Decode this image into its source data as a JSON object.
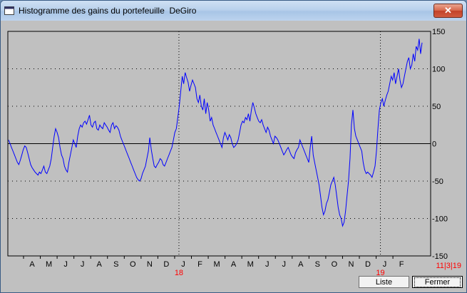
{
  "window": {
    "title": "Histogramme des gains du portefeuille  DeGiro",
    "close_icon": "close-icon"
  },
  "buttons": {
    "liste": "Liste",
    "fermer": "Fermer"
  },
  "colors": {
    "line": "#0000ff",
    "year_label": "#ff0000",
    "plot_bg": "#c0c0c0",
    "zero_line": "#000000"
  },
  "chart_data": {
    "type": "line",
    "ylim": [
      -150,
      150
    ],
    "yticks": [
      "150",
      "100",
      "50",
      "0",
      "-50",
      "-100",
      "-150"
    ],
    "grid": "dotted",
    "x_labels": [
      "A",
      "M",
      "J",
      "J",
      "A",
      "S",
      "O",
      "N",
      "D",
      "J",
      "F",
      "M",
      "A",
      "M",
      "J",
      "J",
      "A",
      "S",
      "O",
      "N",
      "D",
      "J",
      "F"
    ],
    "year_labels": [
      "18",
      "19"
    ],
    "date_label": "11|3|19",
    "series": [
      {
        "values": [
          5,
          0,
          -5,
          -10,
          -15,
          -20,
          -25,
          -28,
          -22,
          -15,
          -8,
          -3,
          -5,
          -12,
          -20,
          -28,
          -32,
          -35,
          -38,
          -40,
          -42,
          -38,
          -40,
          -35,
          -30,
          -38,
          -40,
          -35,
          -30,
          -20,
          -5,
          10,
          20,
          15,
          8,
          -5,
          -15,
          -20,
          -30,
          -35,
          -38,
          -25,
          -15,
          -5,
          5,
          0,
          -5,
          10,
          20,
          25,
          22,
          28,
          30,
          26,
          32,
          38,
          25,
          22,
          28,
          30,
          20,
          18,
          25,
          22,
          20,
          28,
          25,
          22,
          18,
          15,
          25,
          28,
          20,
          24,
          22,
          18,
          10,
          5,
          0,
          -5,
          -10,
          -15,
          -20,
          -25,
          -30,
          -35,
          -40,
          -45,
          -48,
          -50,
          -47,
          -40,
          -35,
          -30,
          -20,
          -10,
          8,
          -8,
          -20,
          -30,
          -32,
          -28,
          -25,
          -20,
          -22,
          -28,
          -30,
          -25,
          -20,
          -15,
          -10,
          -5,
          5,
          15,
          20,
          35,
          50,
          70,
          90,
          80,
          95,
          88,
          82,
          70,
          78,
          85,
          80,
          75,
          60,
          55,
          65,
          50,
          45,
          60,
          40,
          55,
          45,
          30,
          35,
          25,
          20,
          15,
          10,
          5,
          0,
          -5,
          8,
          15,
          10,
          5,
          12,
          8,
          0,
          -5,
          -3,
          0,
          5,
          15,
          25,
          30,
          28,
          35,
          32,
          40,
          30,
          45,
          55,
          48,
          40,
          35,
          30,
          28,
          32,
          25,
          20,
          15,
          22,
          18,
          10,
          5,
          0,
          10,
          8,
          5,
          0,
          -5,
          -10,
          -15,
          -12,
          -8,
          -5,
          -10,
          -15,
          -18,
          -20,
          -12,
          -8,
          -5,
          5,
          0,
          -5,
          -10,
          -15,
          -20,
          -25,
          -5,
          10,
          -15,
          -25,
          -35,
          -45,
          -55,
          -70,
          -85,
          -95,
          -90,
          -80,
          -75,
          -65,
          -55,
          -50,
          -45,
          -55,
          -70,
          -85,
          -95,
          -100,
          -110,
          -105,
          -90,
          -70,
          -50,
          -20,
          25,
          45,
          20,
          10,
          5,
          0,
          -5,
          -10,
          -25,
          -35,
          -40,
          -38,
          -40,
          -42,
          -45,
          -38,
          -30,
          -10,
          20,
          45,
          55,
          60,
          50,
          58,
          65,
          70,
          80,
          90,
          85,
          95,
          80,
          90,
          100,
          85,
          75,
          80,
          90,
          100,
          110,
          115,
          100,
          105,
          120,
          110,
          130,
          125,
          140,
          120,
          135
        ]
      }
    ]
  }
}
